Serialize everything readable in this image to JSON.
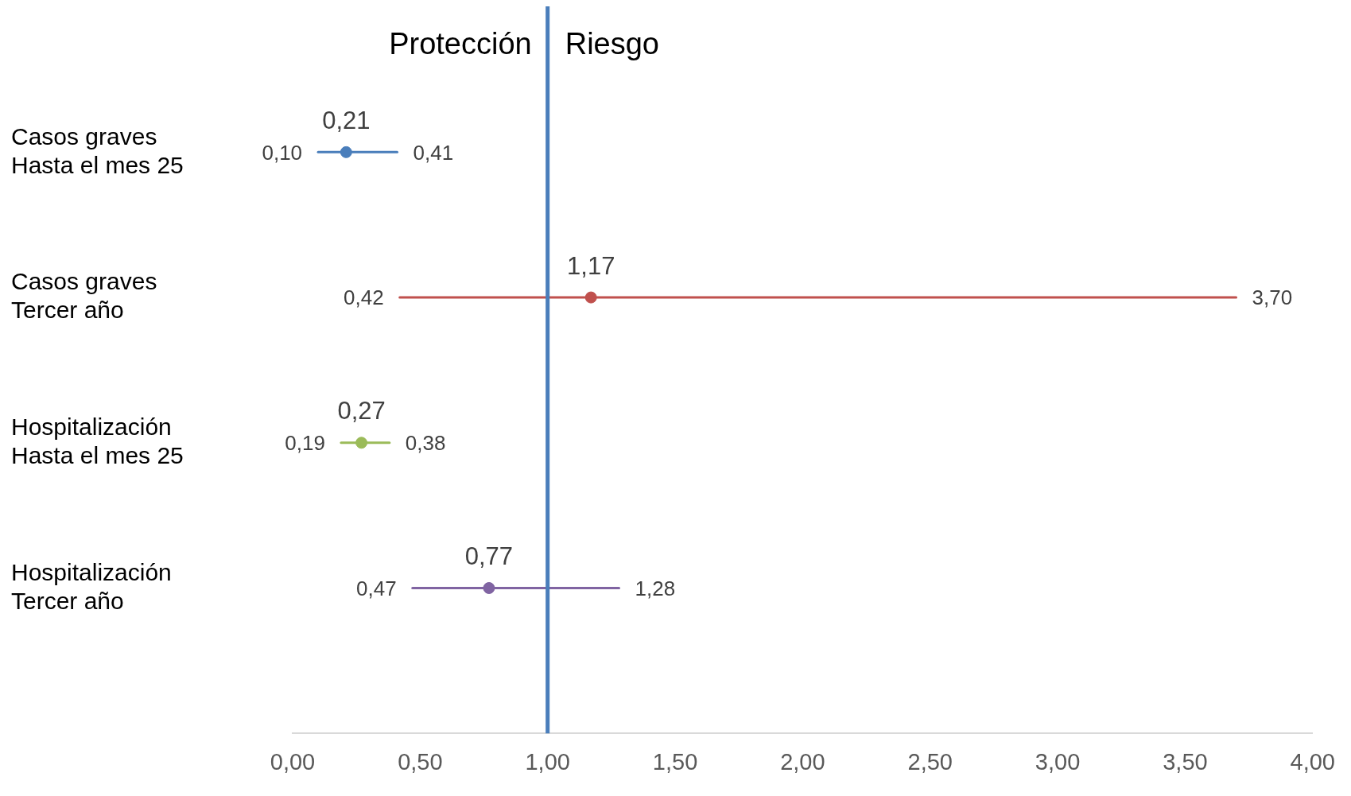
{
  "chart_data": {
    "type": "scatter",
    "orientation": "horizontal",
    "categories": [
      "Casos graves\nHasta el mes 25",
      "Casos graves\nTercer año",
      "Hospitalización\nHasta el mes 25",
      "Hospitalización\nTercer año"
    ],
    "values": [
      0.21,
      1.17,
      0.27,
      0.77
    ],
    "errors": [
      [
        0.1,
        0.41
      ],
      [
        0.42,
        3.7
      ],
      [
        0.19,
        0.38
      ],
      [
        0.47,
        1.28
      ]
    ],
    "colors": [
      "#4a7ebb",
      "#c0504d",
      "#9bbb59",
      "#8064a2"
    ],
    "value_labels": [
      "0,21",
      "1,17",
      "0,27",
      "0,77"
    ],
    "xlim": [
      0,
      4
    ],
    "xticks": [
      {
        "value": 0,
        "label": "0,00"
      },
      {
        "value": 0.5,
        "label": "0,50"
      },
      {
        "value": 1,
        "label": "1,00"
      },
      {
        "value": 1.5,
        "label": "1,50"
      },
      {
        "value": 2,
        "label": "2,00"
      },
      {
        "value": 2.5,
        "label": "2,50"
      },
      {
        "value": 3,
        "label": "3,00"
      },
      {
        "value": 3.5,
        "label": "3,50"
      },
      {
        "value": 4,
        "label": "4,00"
      }
    ],
    "ref_lines": [
      {
        "axis": "x",
        "value": 1,
        "color": "#4a7ebb"
      }
    ],
    "annotations": [
      "Protección",
      "Riesgo",
      "0,10",
      "0,41",
      "0,42",
      "3,70",
      "0,19",
      "0,38",
      "0,47",
      "1,28"
    ],
    "grid": false,
    "legend": false,
    "marker": "circle"
  }
}
